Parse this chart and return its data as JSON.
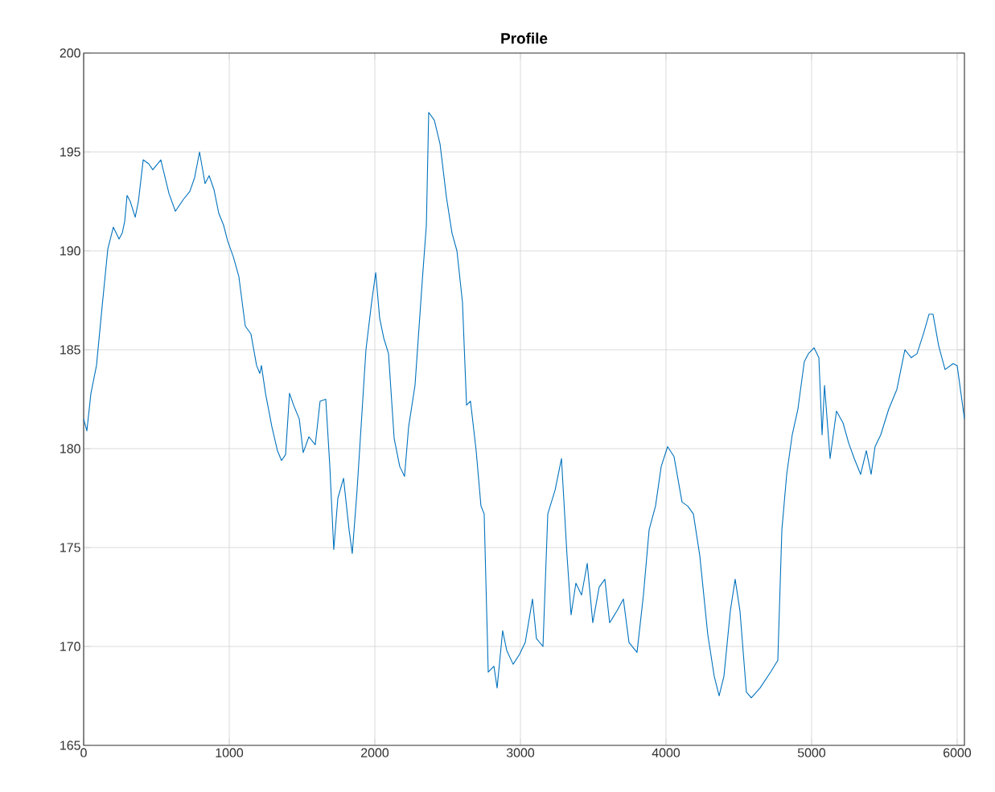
{
  "chart_data": {
    "type": "line",
    "title": "Profile",
    "x": [
      0,
      22,
      50,
      88,
      127,
      166,
      204,
      243,
      265,
      282,
      298,
      320,
      354,
      376,
      409,
      447,
      475,
      530,
      586,
      630,
      685,
      729,
      762,
      796,
      834,
      862,
      895,
      928,
      961,
      989,
      1028,
      1066,
      1110,
      1149,
      1188,
      1210,
      1221,
      1249,
      1293,
      1331,
      1359,
      1387,
      1414,
      1442,
      1481,
      1508,
      1547,
      1591,
      1624,
      1663,
      1691,
      1718,
      1746,
      1785,
      1823,
      1845,
      1878,
      1939,
      1978,
      2006,
      2033,
      2061,
      2094,
      2133,
      2171,
      2204,
      2232,
      2276,
      2326,
      2354,
      2370,
      2409,
      2448,
      2492,
      2530,
      2564,
      2602,
      2630,
      2657,
      2696,
      2729,
      2751,
      2779,
      2818,
      2840,
      2878,
      2906,
      2950,
      2994,
      3033,
      3083,
      3110,
      3155,
      3188,
      3238,
      3282,
      3320,
      3348,
      3381,
      3420,
      3459,
      3497,
      3541,
      3580,
      3613,
      3663,
      3707,
      3746,
      3801,
      3845,
      3884,
      3928,
      3967,
      4011,
      4055,
      4110,
      4149,
      4188,
      4232,
      4287,
      4331,
      4365,
      4398,
      4442,
      4475,
      4508,
      4552,
      4586,
      4646,
      4718,
      4768,
      4796,
      4829,
      4867,
      4906,
      4950,
      4978,
      5017,
      5050,
      5072,
      5089,
      5127,
      5171,
      5216,
      5254,
      5293,
      5337,
      5376,
      5409,
      5436,
      5475,
      5530,
      5586,
      5641,
      5685,
      5724,
      5768,
      5807,
      5834,
      5873,
      5917,
      5972,
      6000,
      6050
    ],
    "series": [
      {
        "color": "#0072bd",
        "values": [
          181.5,
          180.9,
          182.8,
          184.2,
          187.2,
          190.1,
          191.2,
          190.6,
          190.9,
          191.5,
          192.8,
          192.5,
          191.7,
          192.5,
          194.6,
          194.4,
          194.1,
          194.6,
          192.9,
          192.0,
          192.6,
          193.0,
          193.7,
          195.0,
          193.4,
          193.8,
          193.1,
          191.9,
          191.3,
          190.5,
          189.7,
          188.7,
          186.2,
          185.8,
          184.2,
          183.8,
          184.2,
          182.8,
          181.1,
          179.9,
          179.4,
          179.7,
          182.8,
          182.2,
          181.5,
          179.8,
          180.6,
          180.2,
          182.4,
          182.5,
          179.1,
          174.9,
          177.5,
          178.5,
          175.9,
          174.7,
          177.9,
          185.0,
          187.4,
          188.9,
          186.6,
          185.6,
          184.8,
          180.5,
          179.1,
          178.6,
          181.1,
          183.2,
          188.5,
          191.3,
          197.0,
          196.6,
          195.4,
          192.7,
          190.9,
          190.0,
          187.4,
          182.2,
          182.4,
          179.9,
          177.1,
          176.7,
          168.7,
          169.0,
          167.9,
          170.8,
          169.8,
          169.1,
          169.6,
          170.2,
          172.4,
          170.4,
          170.0,
          176.7,
          177.9,
          179.5,
          174.6,
          171.6,
          173.2,
          172.6,
          174.2,
          171.2,
          173.0,
          173.4,
          171.2,
          171.8,
          172.4,
          170.2,
          169.7,
          172.6,
          175.9,
          177.1,
          179.1,
          180.1,
          179.6,
          177.3,
          177.1,
          176.7,
          174.6,
          170.6,
          168.5,
          167.5,
          168.5,
          171.8,
          173.4,
          171.8,
          167.7,
          167.4,
          167.9,
          168.7,
          169.3,
          175.9,
          178.7,
          180.7,
          182.0,
          184.4,
          184.8,
          185.1,
          184.6,
          180.7,
          183.2,
          179.5,
          181.9,
          181.3,
          180.3,
          179.5,
          178.7,
          179.9,
          178.7,
          180.1,
          180.7,
          182.0,
          183.0,
          185.0,
          184.6,
          184.8,
          185.8,
          186.8,
          186.8,
          185.2,
          184.0,
          184.3,
          184.2,
          181.5
        ]
      }
    ],
    "xlim": [
      0,
      6050
    ],
    "ylim": [
      165,
      200
    ],
    "xticks": [
      0,
      1000,
      2000,
      3000,
      4000,
      5000,
      6000
    ],
    "yticks": [
      165,
      170,
      175,
      180,
      185,
      190,
      195,
      200
    ],
    "grid": true,
    "marker": "none",
    "line_style": "solid"
  }
}
